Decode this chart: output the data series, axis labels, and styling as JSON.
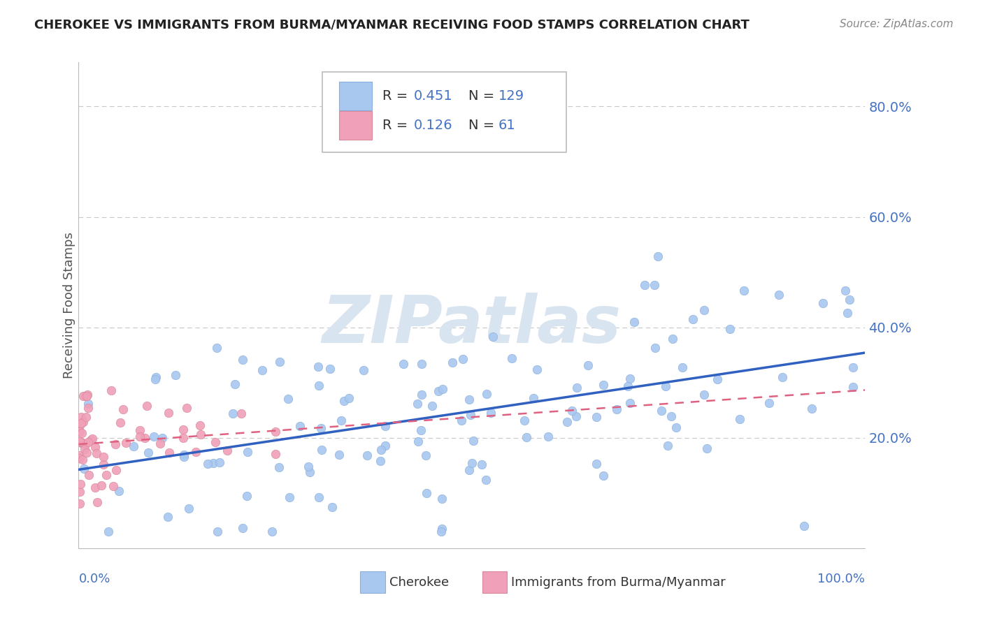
{
  "title": "CHEROKEE VS IMMIGRANTS FROM BURMA/MYANMAR RECEIVING FOOD STAMPS CORRELATION CHART",
  "source": "Source: ZipAtlas.com",
  "ylabel": "Receiving Food Stamps",
  "yticks": [
    "20.0%",
    "40.0%",
    "60.0%",
    "80.0%"
  ],
  "ytick_vals": [
    0.2,
    0.4,
    0.6,
    0.8
  ],
  "legend_label1": "Cherokee",
  "legend_label2": "Immigrants from Burma/Myanmar",
  "R1": 0.451,
  "N1": 129,
  "R2": 0.126,
  "N2": 61,
  "color_blue": "#A8C8F0",
  "color_blue_edge": "#8AAEDD",
  "color_pink": "#F0A0B8",
  "color_pink_edge": "#D88899",
  "color_blue_line": "#3060C0",
  "color_pink_line": "#E06080",
  "watermark_color": "#D8E4F0",
  "xlim": [
    0.0,
    1.0
  ],
  "ylim": [
    0.0,
    0.88
  ]
}
